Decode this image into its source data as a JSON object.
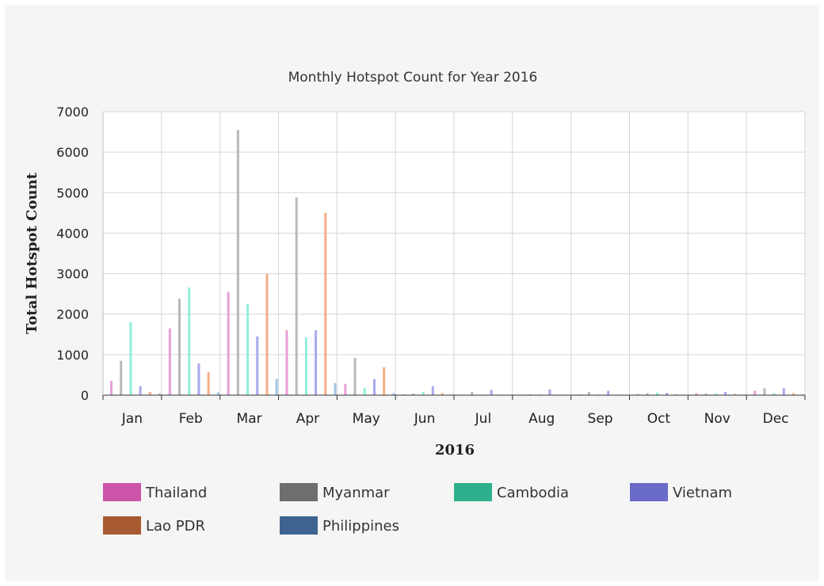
{
  "chart_data": {
    "type": "bar",
    "title": "Monthly Hotspot Count for Year 2016",
    "xlabel": "2016",
    "ylabel": "Total Hotspot Count",
    "ylim": [
      0,
      7000
    ],
    "yticks": [
      0,
      1000,
      2000,
      3000,
      4000,
      5000,
      6000,
      7000
    ],
    "grid": true,
    "legend_position": "bottom",
    "categories": [
      "Jan",
      "Feb",
      "Mar",
      "Apr",
      "May",
      "Jun",
      "Jul",
      "Aug",
      "Sep",
      "Oct",
      "Nov",
      "Dec"
    ],
    "series": [
      {
        "name": "Thailand",
        "legend_color": "#cc55aa",
        "bar_color": "#e8a0d4",
        "values": [
          350,
          1650,
          2550,
          1600,
          280,
          20,
          10,
          15,
          20,
          30,
          50,
          110
        ]
      },
      {
        "name": "Myanmar",
        "legend_color": "#6e6e6e",
        "bar_color": "#b8b8b8",
        "values": [
          850,
          2380,
          6550,
          4880,
          920,
          40,
          80,
          20,
          80,
          50,
          40,
          170
        ]
      },
      {
        "name": "Cambodia",
        "legend_color": "#2eb08c",
        "bar_color": "#8ff0dc",
        "values": [
          1800,
          2660,
          2250,
          1430,
          180,
          80,
          10,
          20,
          20,
          60,
          40,
          50
        ]
      },
      {
        "name": "Vietnam",
        "legend_color": "#6a6ac8",
        "bar_color": "#a8a8ec",
        "values": [
          220,
          780,
          1450,
          1600,
          400,
          220,
          130,
          140,
          110,
          60,
          80,
          170
        ]
      },
      {
        "name": "Lao PDR",
        "legend_color": "#a85a30",
        "bar_color": "#f4ae86",
        "values": [
          80,
          570,
          3000,
          4500,
          690,
          50,
          10,
          10,
          10,
          20,
          30,
          50
        ]
      },
      {
        "name": "Philippines",
        "legend_color": "#3d6490",
        "bar_color": "#a4c4e4",
        "values": [
          40,
          70,
          400,
          300,
          50,
          15,
          10,
          10,
          10,
          10,
          15,
          20
        ]
      }
    ]
  }
}
